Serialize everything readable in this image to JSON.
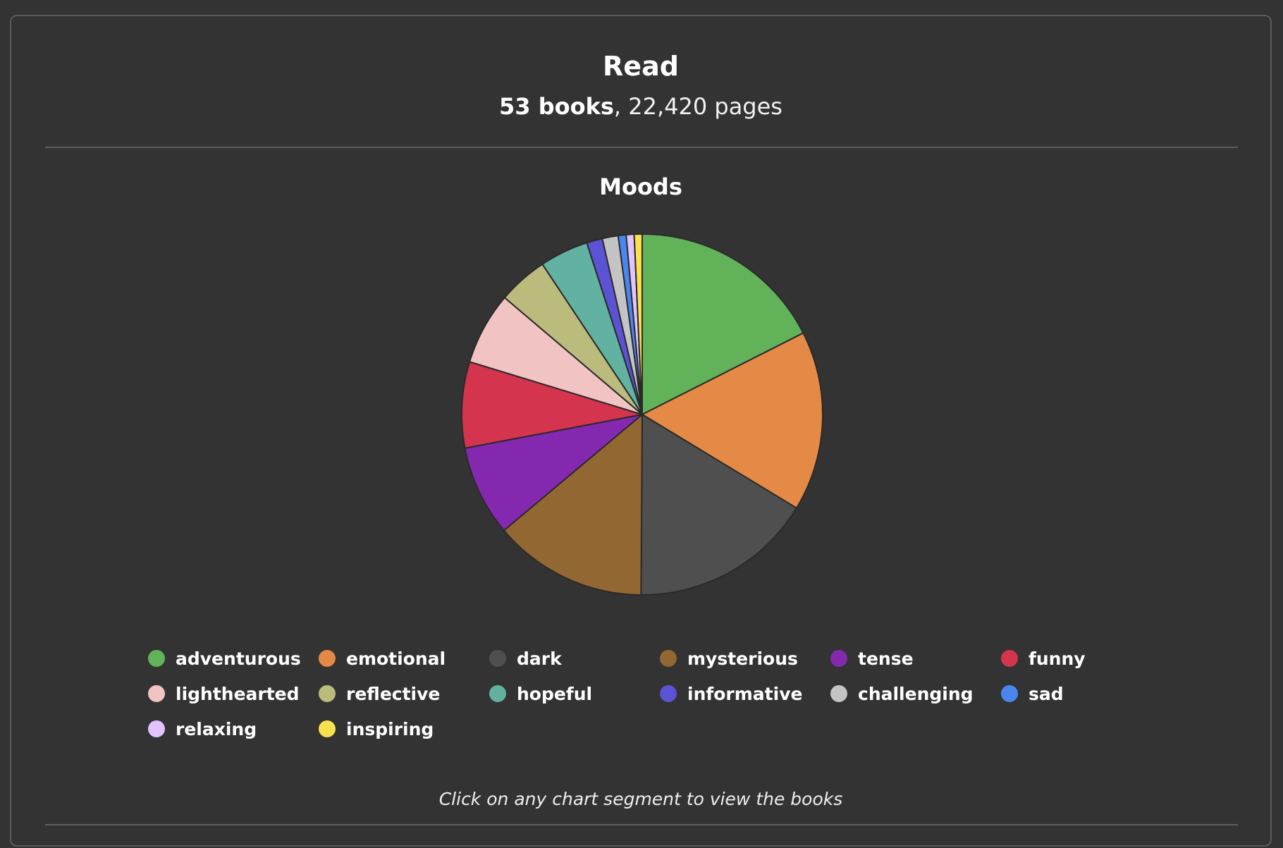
{
  "header": {
    "title": "Read",
    "books_count": "53 books",
    "separator": ", ",
    "pages_count": "22,420 pages"
  },
  "hint": "Click on any chart segment to view the books",
  "chart_data": {
    "type": "pie",
    "title": "Moods",
    "legend_position": "bottom",
    "slices": [
      {
        "label": "adventurous",
        "value": 17.3,
        "color": "#62b25a"
      },
      {
        "label": "emotional",
        "value": 15.9,
        "color": "#e58a46"
      },
      {
        "label": "dark",
        "value": 16.2,
        "color": "#4f4f4f"
      },
      {
        "label": "mysterious",
        "value": 13.6,
        "color": "#936732"
      },
      {
        "label": "tense",
        "value": 8.0,
        "color": "#8428b0"
      },
      {
        "label": "funny",
        "value": 7.6,
        "color": "#d4344e"
      },
      {
        "label": "lighthearted",
        "value": 6.4,
        "color": "#f2c3c3"
      },
      {
        "label": "reflective",
        "value": 4.4,
        "color": "#bbbb7d"
      },
      {
        "label": "hopeful",
        "value": 4.3,
        "color": "#62b2a2"
      },
      {
        "label": "informative",
        "value": 1.4,
        "color": "#5c52d4"
      },
      {
        "label": "challenging",
        "value": 1.4,
        "color": "#c4c4c4"
      },
      {
        "label": "sad",
        "value": 0.7,
        "color": "#4a86f0"
      },
      {
        "label": "relaxing",
        "value": 0.7,
        "color": "#e0c4fb"
      },
      {
        "label": "inspiring",
        "value": 0.7,
        "color": "#f8e04e"
      }
    ]
  }
}
